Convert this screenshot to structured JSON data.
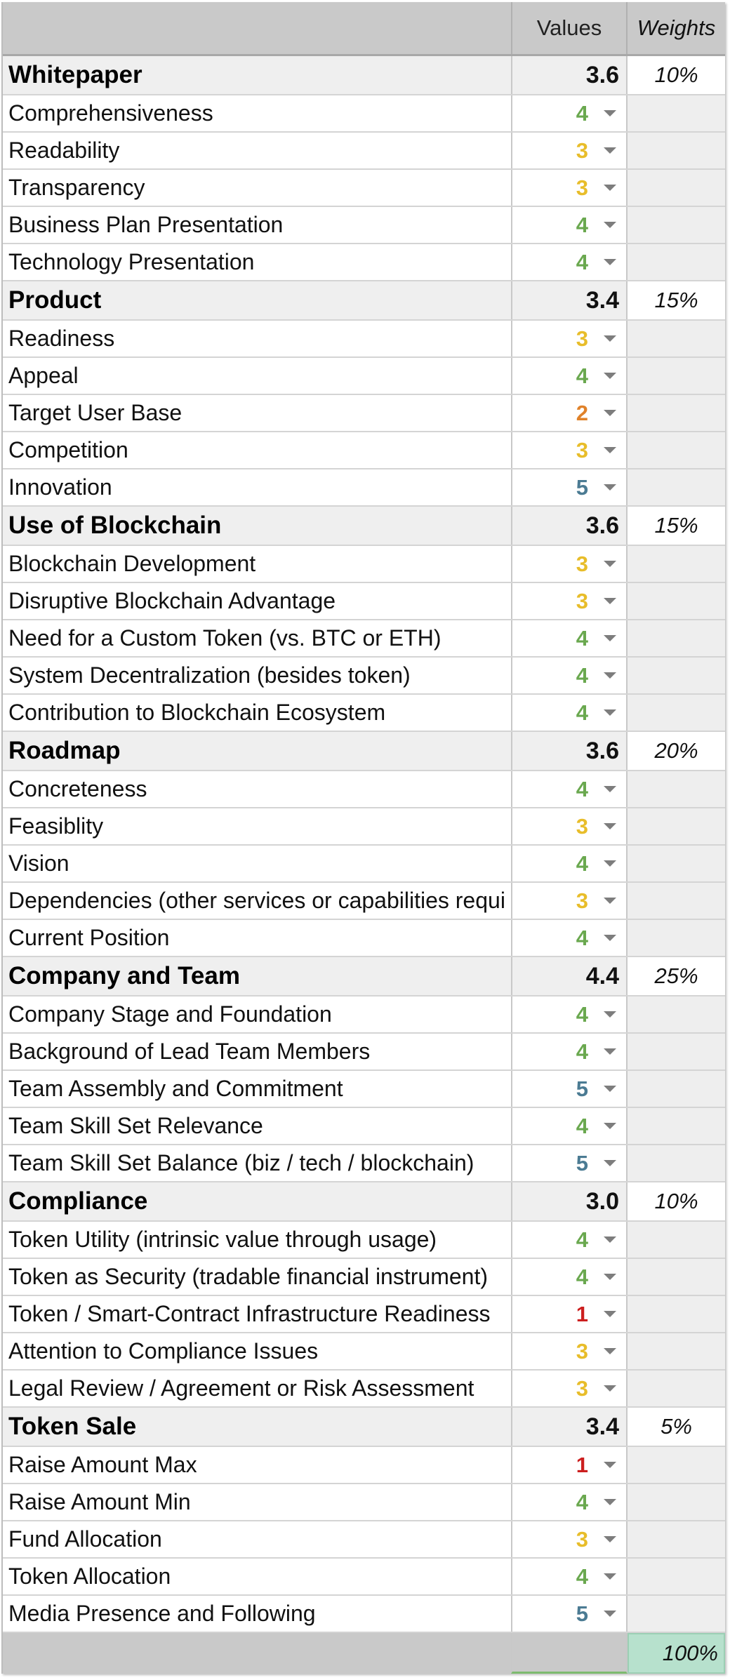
{
  "header": {
    "values_label": "Values",
    "weights_label": "Weights"
  },
  "score_colors": {
    "1": "#cc1f1f",
    "2": "#e0822a",
    "3": "#e8bd2a",
    "4": "#6aa84f",
    "5": "#4b7b93"
  },
  "sections": [
    {
      "title": "Whitepaper",
      "value": "3.6",
      "weight": "10%",
      "items": [
        {
          "label": "Comprehensiveness",
          "score": "4"
        },
        {
          "label": "Readability",
          "score": "3"
        },
        {
          "label": "Transparency",
          "score": "3"
        },
        {
          "label": "Business Plan Presentation",
          "score": "4"
        },
        {
          "label": "Technology Presentation",
          "score": "4"
        }
      ]
    },
    {
      "title": "Product",
      "value": "3.4",
      "weight": "15%",
      "items": [
        {
          "label": "Readiness",
          "score": "3"
        },
        {
          "label": "Appeal",
          "score": "4"
        },
        {
          "label": "Target User Base",
          "score": "2"
        },
        {
          "label": "Competition",
          "score": "3"
        },
        {
          "label": "Innovation",
          "score": "5"
        }
      ]
    },
    {
      "title": "Use of Blockchain",
      "value": "3.6",
      "weight": "15%",
      "items": [
        {
          "label": "Blockchain Development",
          "score": "3"
        },
        {
          "label": "Disruptive Blockchain Advantage",
          "score": "3"
        },
        {
          "label": "Need for a Custom Token (vs. BTC or ETH)",
          "score": "4"
        },
        {
          "label": "System Decentralization (besides token)",
          "score": "4"
        },
        {
          "label": "Contribution to Blockchain Ecosystem",
          "score": "4"
        }
      ]
    },
    {
      "title": "Roadmap",
      "value": "3.6",
      "weight": "20%",
      "items": [
        {
          "label": "Concreteness",
          "score": "4"
        },
        {
          "label": "Feasiblity",
          "score": "3"
        },
        {
          "label": "Vision",
          "score": "4"
        },
        {
          "label": "Dependencies (other services or capabilities requi",
          "score": "3"
        },
        {
          "label": "Current Position",
          "score": "4"
        }
      ]
    },
    {
      "title": "Company and Team",
      "value": "4.4",
      "weight": "25%",
      "items": [
        {
          "label": "Company Stage and Foundation",
          "score": "4"
        },
        {
          "label": "Background of Lead Team Members",
          "score": "4"
        },
        {
          "label": "Team Assembly and Commitment",
          "score": "5"
        },
        {
          "label": "Team Skill Set Relevance",
          "score": "4"
        },
        {
          "label": "Team Skill Set Balance (biz / tech / blockchain)",
          "score": "5"
        }
      ]
    },
    {
      "title": "Compliance",
      "value": "3.0",
      "weight": "10%",
      "items": [
        {
          "label": "Token Utility (intrinsic value through usage)",
          "score": "4"
        },
        {
          "label": "Token as Security (tradable financial instrument)",
          "score": "4"
        },
        {
          "label": "Token / Smart-Contract Infrastructure Readiness",
          "score": "1"
        },
        {
          "label": "Attention to Compliance Issues",
          "score": "3"
        },
        {
          "label": "Legal Review / Agreement or Risk Assessment",
          "score": "3"
        }
      ]
    },
    {
      "title": "Token Sale",
      "value": "3.4",
      "weight": "5%",
      "items": [
        {
          "label": "Raise Amount Max",
          "score": "1"
        },
        {
          "label": "Raise Amount Min",
          "score": "4"
        },
        {
          "label": "Fund Allocation",
          "score": "3"
        },
        {
          "label": "Token Allocation",
          "score": "4"
        },
        {
          "label": "Media Presence and Following",
          "score": "5"
        }
      ]
    }
  ],
  "footer": {
    "total_weight": "100%"
  }
}
